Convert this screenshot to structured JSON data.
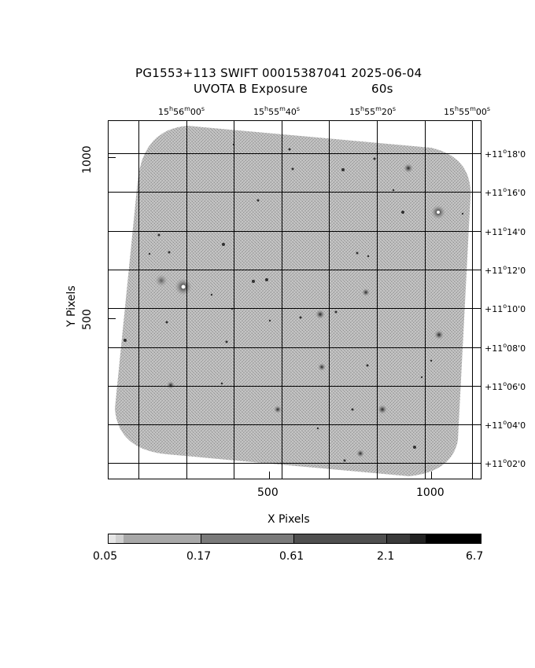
{
  "header": {
    "title_line1": "PG1553+113 SWIFT 00015387041 2025-06-04",
    "title_line2_label": "UVOTA B Exposure",
    "title_line2_value": "60s"
  },
  "axes": {
    "xlabel": "X Pixels",
    "ylabel": "Y Pixels",
    "x_ticks": [
      {
        "label": "500",
        "value": 500
      },
      {
        "label": "1000",
        "value": 1000
      }
    ],
    "y_ticks": [
      {
        "label": "500",
        "value": 500
      },
      {
        "label": "1000",
        "value": 1000
      }
    ],
    "ra_ticks": [
      {
        "h": "15",
        "m": "56",
        "s": "00"
      },
      {
        "h": "15",
        "m": "55",
        "s": "40"
      },
      {
        "h": "15",
        "m": "55",
        "s": "20"
      },
      {
        "h": "15",
        "m": "55",
        "s": "00"
      }
    ],
    "dec_ticks": [
      {
        "deg": "+11",
        "min": "18"
      },
      {
        "deg": "+11",
        "min": "16"
      },
      {
        "deg": "+11",
        "min": "14"
      },
      {
        "deg": "+11",
        "min": "12"
      },
      {
        "deg": "+11",
        "min": "10"
      },
      {
        "deg": "+11",
        "min": "08"
      },
      {
        "deg": "+11",
        "min": "06"
      },
      {
        "deg": "+11",
        "min": "04"
      },
      {
        "deg": "+11",
        "min": "02"
      }
    ]
  },
  "colorbar": {
    "labels": [
      "0.05",
      "0.17",
      "0.61",
      "2.1",
      "6.7"
    ],
    "colors": [
      "#d0d0d0",
      "#9d9d9d",
      "#6a6a6a",
      "#3c3c3c",
      "#000000"
    ]
  },
  "image": {
    "field_color": "#a9a9a9",
    "background": "#ffffff"
  }
}
